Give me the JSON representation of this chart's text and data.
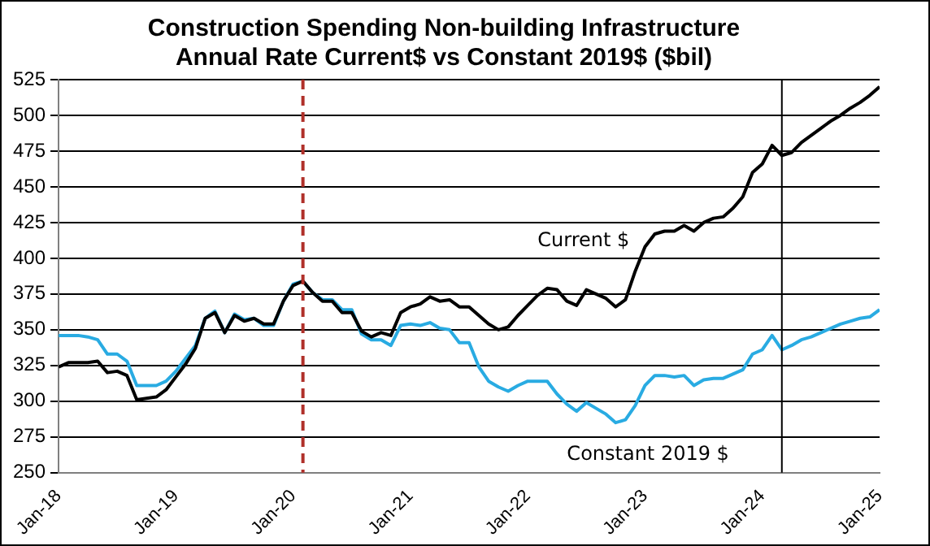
{
  "chart_data": {
    "type": "line",
    "title": "Construction Spending Non-building Infrastructure\nAnnual Rate Current$ vs Constant 2019$ ($bil)",
    "x": [
      "2018-01",
      "2018-02",
      "2018-03",
      "2018-04",
      "2018-05",
      "2018-06",
      "2018-07",
      "2018-08",
      "2018-09",
      "2018-10",
      "2018-11",
      "2018-12",
      "2019-01",
      "2019-02",
      "2019-03",
      "2019-04",
      "2019-05",
      "2019-06",
      "2019-07",
      "2019-08",
      "2019-09",
      "2019-10",
      "2019-11",
      "2019-12",
      "2020-01",
      "2020-02",
      "2020-03",
      "2020-04",
      "2020-05",
      "2020-06",
      "2020-07",
      "2020-08",
      "2020-09",
      "2020-10",
      "2020-11",
      "2020-12",
      "2021-01",
      "2021-02",
      "2021-03",
      "2021-04",
      "2021-05",
      "2021-06",
      "2021-07",
      "2021-08",
      "2021-09",
      "2021-10",
      "2021-11",
      "2021-12",
      "2022-01",
      "2022-02",
      "2022-03",
      "2022-04",
      "2022-05",
      "2022-06",
      "2022-07",
      "2022-08",
      "2022-09",
      "2022-10",
      "2022-11",
      "2022-12",
      "2023-01",
      "2023-02",
      "2023-03",
      "2023-04",
      "2023-05",
      "2023-06",
      "2023-07",
      "2023-08",
      "2023-09",
      "2023-10",
      "2023-11",
      "2023-12",
      "2024-01",
      "2024-02",
      "2024-03",
      "2024-04",
      "2024-05",
      "2024-06",
      "2024-07",
      "2024-08",
      "2024-09",
      "2024-10",
      "2024-11",
      "2024-12",
      "2025-01"
    ],
    "series": [
      {
        "name": "Current $",
        "color": "#000000",
        "values": [
          324,
          327,
          327,
          327,
          328,
          320,
          321,
          318,
          301,
          302,
          303,
          308,
          317,
          326,
          337,
          358,
          362,
          348,
          360,
          356,
          358,
          354,
          354,
          370,
          381,
          384,
          376,
          370,
          370,
          362,
          362,
          349,
          345,
          348,
          346,
          362,
          366,
          368,
          373,
          370,
          371,
          366,
          366,
          360,
          354,
          350,
          352,
          360,
          367,
          374,
          379,
          378,
          370,
          367,
          378,
          375,
          372,
          366,
          371,
          391,
          408,
          417,
          419,
          419,
          423,
          419,
          425,
          428,
          429,
          435,
          443,
          460,
          466,
          479,
          472,
          474,
          481,
          486,
          491,
          496,
          500,
          505,
          509,
          514,
          520
        ]
      },
      {
        "name": "Constant 2019 $",
        "color": "#29abe2",
        "values": [
          346,
          346,
          346,
          345,
          343,
          333,
          333,
          328,
          311,
          311,
          311,
          314,
          321,
          330,
          339,
          358,
          363,
          348,
          361,
          357,
          358,
          353,
          353,
          370,
          382,
          384,
          376,
          371,
          371,
          364,
          364,
          347,
          343,
          343,
          339,
          353,
          354,
          353,
          355,
          351,
          350,
          341,
          341,
          324,
          314,
          310,
          307,
          311,
          314,
          314,
          314,
          305,
          298,
          293,
          299,
          295,
          291,
          285,
          287,
          297,
          311,
          318,
          318,
          317,
          318,
          311,
          315,
          316,
          316,
          319,
          322,
          333,
          336,
          346,
          336,
          339,
          343,
          345,
          348,
          351,
          354,
          356,
          358,
          359,
          364
        ]
      }
    ],
    "xlim": [
      "2018-01",
      "2025-01"
    ],
    "xticks": [
      {
        "value": "2018-01",
        "label": "Jan-18"
      },
      {
        "value": "2019-01",
        "label": "Jan-19"
      },
      {
        "value": "2020-01",
        "label": "Jan-20"
      },
      {
        "value": "2021-01",
        "label": "Jan-21"
      },
      {
        "value": "2022-01",
        "label": "Jan-22"
      },
      {
        "value": "2023-01",
        "label": "Jan-23"
      },
      {
        "value": "2024-01",
        "label": "Jan-24"
      },
      {
        "value": "2025-01",
        "label": "Jan-25"
      }
    ],
    "ylim": [
      250,
      525
    ],
    "yticks": [
      250,
      275,
      300,
      325,
      350,
      375,
      400,
      425,
      450,
      475,
      500,
      525
    ],
    "ref_lines": [
      {
        "axis": "x",
        "value": "2020-02",
        "color": "#b0302a",
        "line_style": "dashed"
      },
      {
        "axis": "x",
        "value": "2024-03",
        "color": "#000000",
        "line_style": "solid"
      }
    ],
    "grid": "y",
    "legend": false,
    "marker": "none",
    "line_style": "solid"
  }
}
